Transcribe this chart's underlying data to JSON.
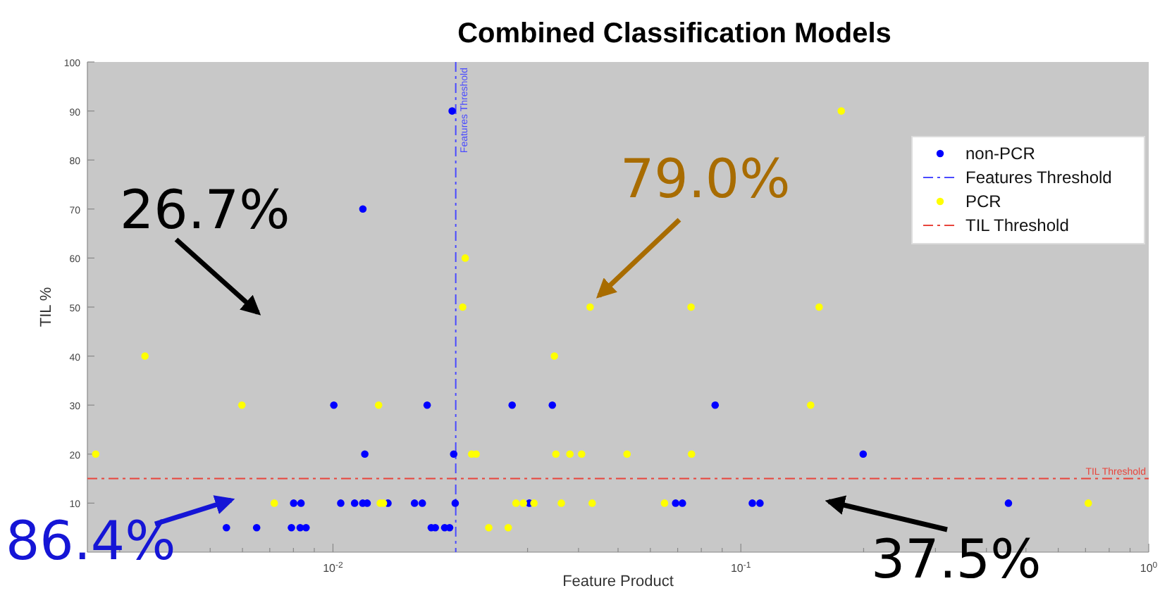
{
  "chart_data": {
    "type": "scatter",
    "title": "Combined Classification Models",
    "xlabel": "Feature Product",
    "ylabel": "TIL %",
    "log": "x",
    "xlim": [
      0.0025,
      1
    ],
    "xticks": [
      {
        "value": 0.01,
        "label": "10$^{-2}$"
      },
      {
        "value": 0.1,
        "label": "10$^{-1}$"
      },
      {
        "value": 1,
        "label": "10$^{0}$"
      }
    ],
    "ylim": [
      0,
      100
    ],
    "yticks": [
      10,
      20,
      30,
      40,
      50,
      60,
      70,
      80,
      90,
      100
    ],
    "grid": false,
    "legend": "top right",
    "marker": "circle",
    "series": [
      {
        "name": "non-PCR",
        "color": "#0000ff",
        "x": [
          0.0196,
          0.01184,
          0.00548,
          0.0065,
          0.00791,
          0.00831,
          0.00859,
          0.00801,
          0.00835,
          0.01005,
          0.01045,
          0.0113,
          0.01183,
          0.01213,
          0.01197,
          0.01364,
          0.01585,
          0.01656,
          0.01702,
          0.01742,
          0.01782,
          0.01879,
          0.01932,
          0.01977,
          0.01994,
          0.0275,
          0.0303,
          0.0345,
          0.0865,
          0.1995,
          0.0692,
          0.0719,
          0.1067,
          0.1114,
          0.453
        ],
        "values": [
          90,
          70,
          5,
          5,
          5,
          5,
          5,
          10,
          10,
          30,
          10,
          10,
          10,
          10,
          20,
          10,
          10,
          10,
          30,
          5,
          5,
          5,
          5,
          20,
          10,
          30,
          10,
          30,
          30,
          20,
          10,
          10,
          10,
          10,
          10
        ]
      },
      {
        "name": "PCR",
        "color": "#ffff00",
        "x": [
          0.00262,
          0.00346,
          0.00598,
          0.00718,
          0.01294,
          0.01306,
          0.0133,
          0.0208,
          0.0211,
          0.02188,
          0.02244,
          0.0241,
          0.0269,
          0.0281,
          0.0293,
          0.0311,
          0.0349,
          0.0352,
          0.0381,
          0.0407,
          0.0363,
          0.0432,
          0.0427,
          0.0755,
          0.1556,
          0.1763,
          0.0526,
          0.0757,
          0.1483,
          0.065,
          0.711
        ],
        "values": [
          20,
          40,
          30,
          10,
          30,
          10,
          10,
          50,
          60,
          20,
          20,
          5,
          5,
          10,
          10,
          10,
          40,
          20,
          20,
          20,
          10,
          10,
          50,
          50,
          50,
          90,
          20,
          20,
          30,
          10,
          10
        ]
      }
    ],
    "ref_lines": [
      {
        "axis": "x",
        "value": 0.02,
        "label": "Features Threshold",
        "color": "#4a4aff",
        "line_style": "dashdot"
      },
      {
        "axis": "y",
        "value": 15,
        "label": "TIL Threshold",
        "color": "#e8453c",
        "line_style": "dashdot"
      }
    ],
    "annotations": [
      "26.7%",
      "79.0%",
      "86.4%",
      "37.5%"
    ]
  }
}
